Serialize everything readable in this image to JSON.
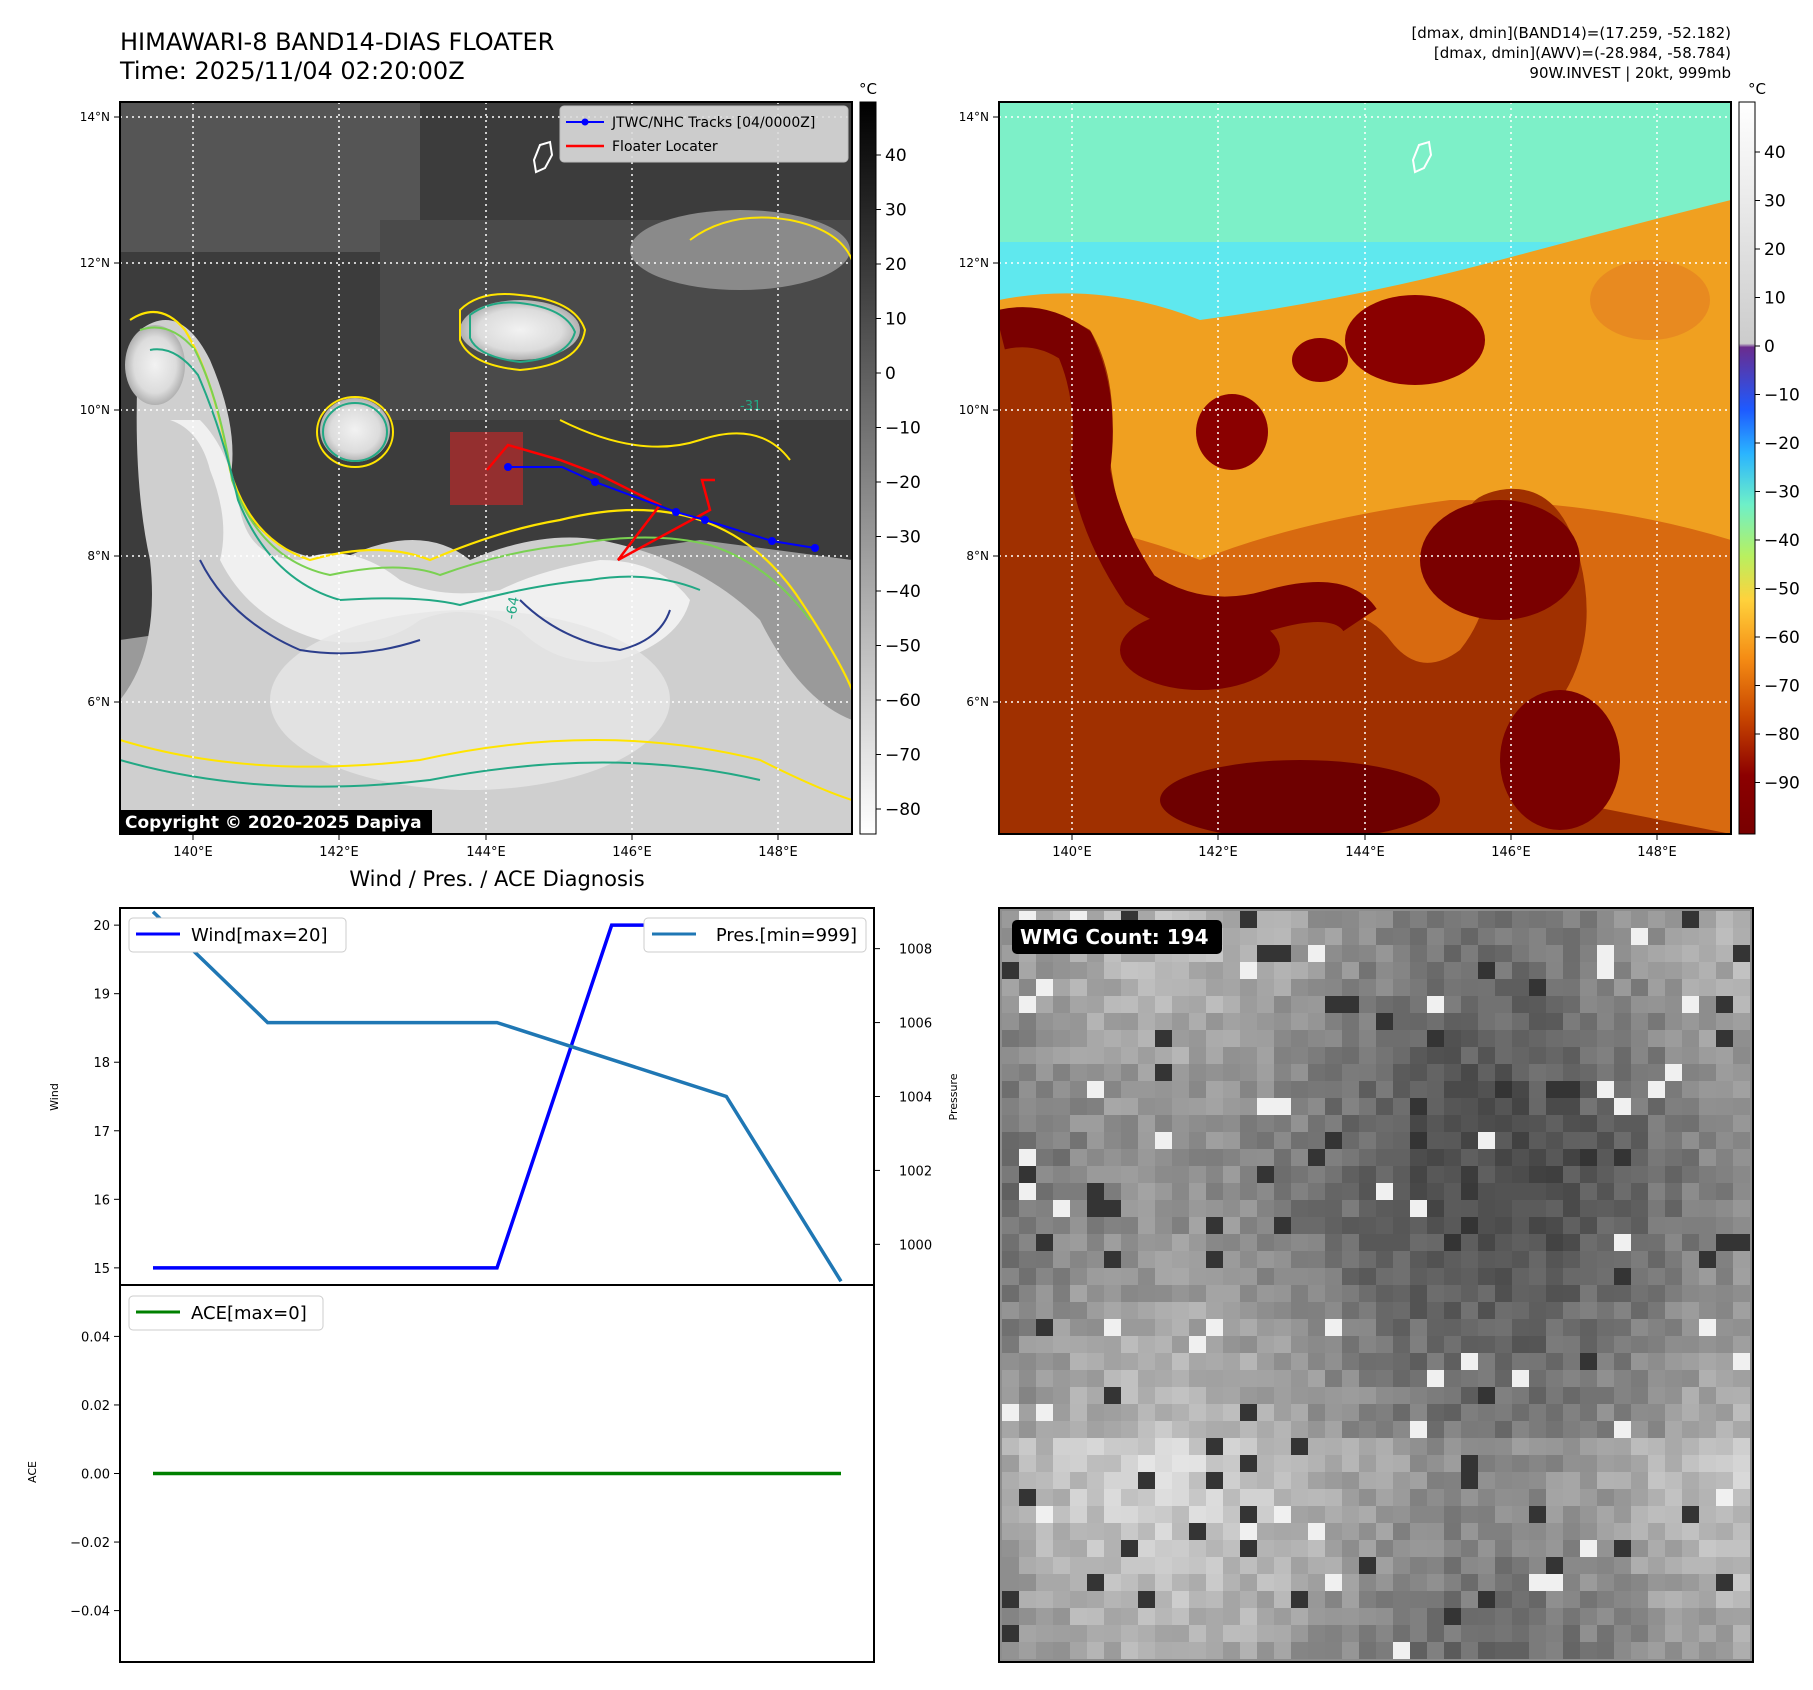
{
  "header": {
    "title_line1": "HIMAWARI-8 BAND14-DIAS FLOATER",
    "title_line2": "Time: 2025/11/04 02:20:00Z",
    "info_line1": "[dmax, dmin](BAND14)=(17.259, -52.182)",
    "info_line2": "[dmax, dmin](AWV)=(-28.984, -58.784)",
    "info_line3": "90W.INVEST | 20kt, 999mb"
  },
  "maps": {
    "lat_ticks": [
      "14°N",
      "12°N",
      "10°N",
      "8°N",
      "6°N"
    ],
    "lon_ticks": [
      "140°E",
      "142°E",
      "144°E",
      "146°E",
      "148°E"
    ],
    "copyright": "Copyright © 2020-2025 Dapiya",
    "left_colorbar_unit": "°C",
    "left_colorbar_ticks": [
      "40",
      "30",
      "20",
      "10",
      "0",
      "−10",
      "−20",
      "−30",
      "−40",
      "−50",
      "−60",
      "−70",
      "−80"
    ],
    "right_colorbar_unit": "°C",
    "right_colorbar_ticks": [
      "40",
      "30",
      "20",
      "10",
      "0",
      "−10",
      "−20",
      "−30",
      "−40",
      "−50",
      "−60",
      "−70",
      "−80",
      "−90"
    ],
    "legend_tracks": "JTWC/NHC Tracks [04/0000Z]",
    "legend_floater": "Floater Locater",
    "contour_labels": [
      "-31",
      "-64"
    ],
    "colors": {
      "track": "#0000ff",
      "floater": "#ff0000",
      "contour_yellow": "#ffe400",
      "contour_green": "#7ad151",
      "contour_teal": "#22a884",
      "contour_navy": "#2c3e8c"
    }
  },
  "diagnosis": {
    "title": "Wind / Pres. / ACE Diagnosis",
    "wind_ylabel": "Wind",
    "pres_ylabel": "Pressure",
    "ace_ylabel": "ACE",
    "wind_legend": "Wind[max=20]",
    "pres_legend": "Pres.[min=999]",
    "ace_legend": "ACE[max=0]",
    "wind_ticks": [
      "20",
      "19",
      "18",
      "17",
      "16",
      "15"
    ],
    "pres_ticks": [
      "1008",
      "1006",
      "1004",
      "1002",
      "1000"
    ],
    "ace_ticks": [
      "0.04",
      "0.02",
      "0.00",
      "−0.02",
      "−0.04"
    ]
  },
  "wmg": {
    "label": "WMG Count: 194"
  },
  "chart_data": [
    {
      "type": "line",
      "title": "Wind / Pres. / ACE Diagnosis",
      "ylabel": "Wind",
      "ylim": [
        14.75,
        20.25
      ],
      "series": [
        {
          "name": "Wind[max=20]",
          "color": "#0000ff",
          "x": [
            0,
            1,
            2,
            3,
            4,
            5,
            6
          ],
          "values": [
            15,
            15,
            15,
            15,
            20,
            20,
            20
          ]
        },
        {
          "name": "Pres.[min=999]",
          "axis": "right",
          "ylabel": "Pressure",
          "ylim": [
            998.9,
            1009.1
          ],
          "color": "#1f77b4",
          "x": [
            0,
            1,
            2,
            3,
            4,
            5,
            6
          ],
          "values": [
            1009,
            1006,
            1006,
            1006,
            1005,
            1004,
            999
          ]
        }
      ]
    },
    {
      "type": "line",
      "ylabel": "ACE",
      "ylim": [
        -0.055,
        0.055
      ],
      "series": [
        {
          "name": "ACE[max=0]",
          "color": "#008000",
          "x": [
            0,
            1,
            2,
            3,
            4,
            5,
            6
          ],
          "values": [
            0,
            0,
            0,
            0,
            0,
            0,
            0
          ]
        }
      ]
    }
  ]
}
